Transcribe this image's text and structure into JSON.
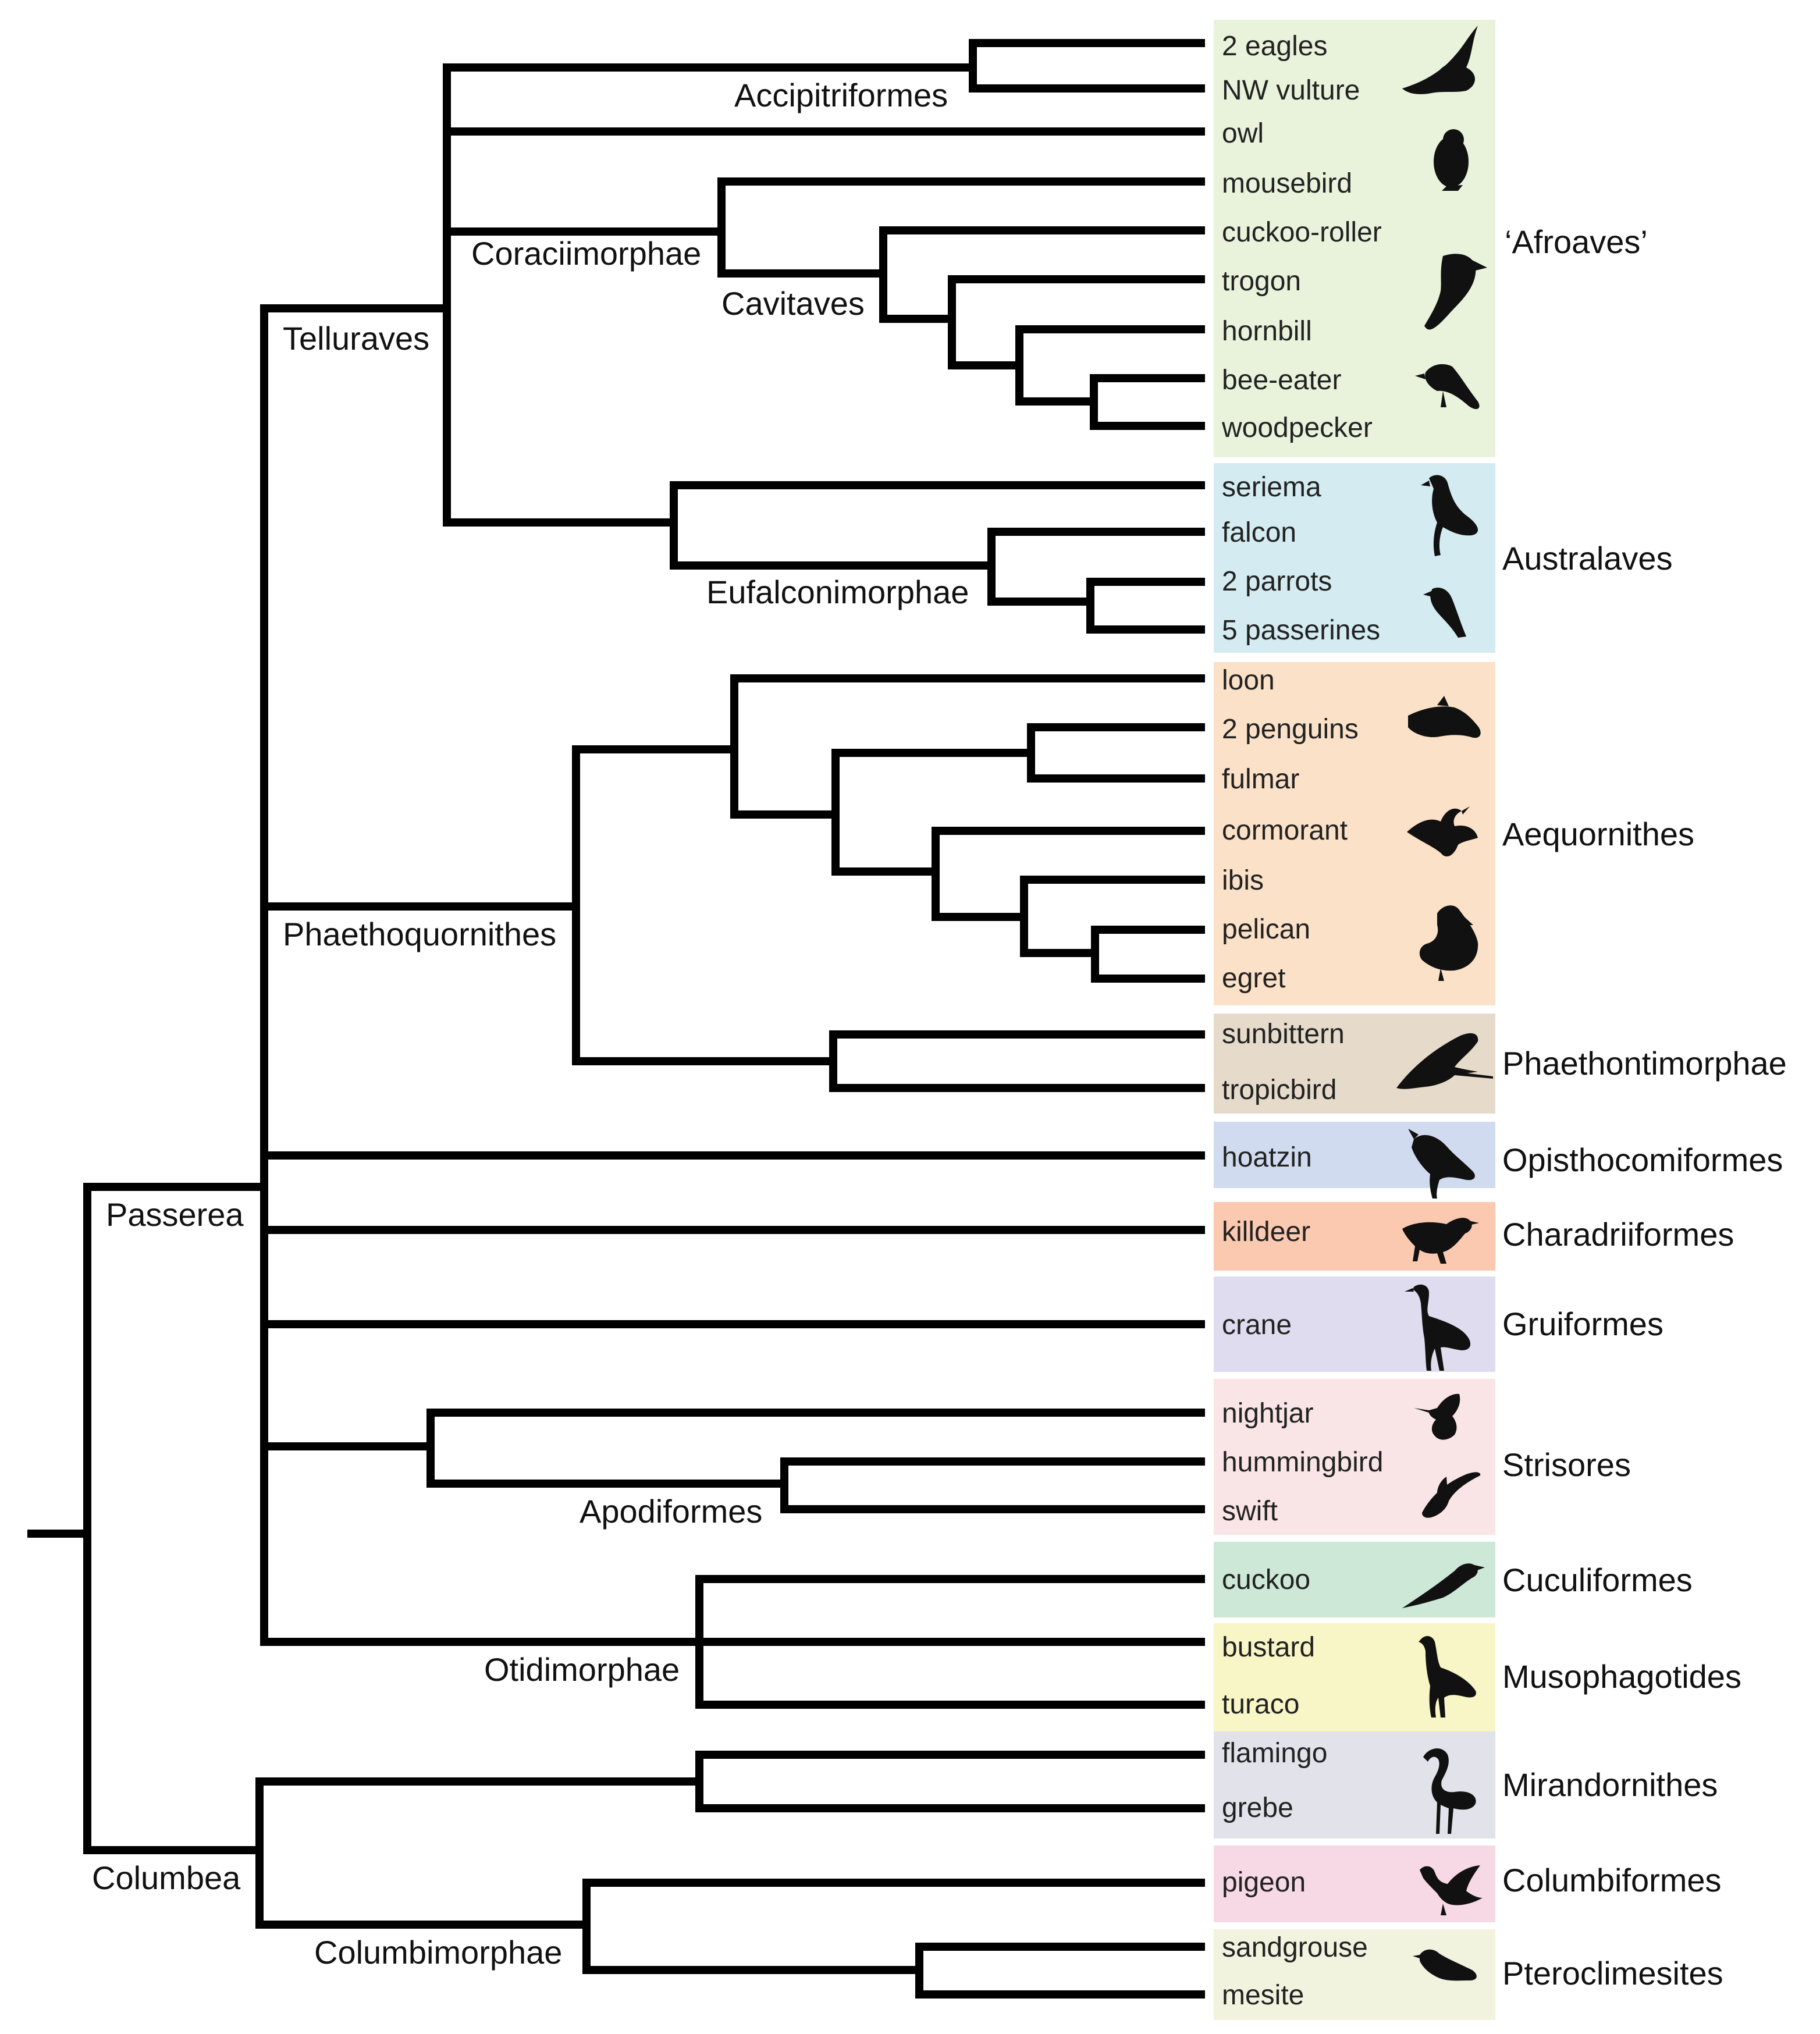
{
  "taxa": [
    "2 eagles",
    "NW vulture",
    "owl",
    "mousebird",
    "cuckoo-roller",
    "trogon",
    "hornbill",
    "bee-eater",
    "woodpecker",
    "seriema",
    "falcon",
    "2 parrots",
    "5 passerines",
    "loon",
    "2 penguins",
    "fulmar",
    "cormorant",
    "ibis",
    "pelican",
    "egret",
    "sunbittern",
    "tropicbird",
    "hoatzin",
    "killdeer",
    "crane",
    "nightjar",
    "hummingbird",
    "swift",
    "cuckoo",
    "bustard",
    "turaco",
    "flamingo",
    "grebe",
    "pigeon",
    "sandgrouse",
    "mesite"
  ],
  "clades": {
    "accipitriformes": "Accipitriformes",
    "coraciimorphae": "Coraciimorphae",
    "cavitaves": "Cavitaves",
    "telluraves": "Telluraves",
    "eufalconimorphae": "Eufalconimorphae",
    "phaethoquornithes": "Phaethoquornithes",
    "passerea": "Passerea",
    "apodiformes": "Apodiformes",
    "otidimorphae": "Otidimorphae",
    "columbea": "Columbea",
    "columbimorphae": "Columbimorphae"
  },
  "groups": [
    {
      "name": "‘Afroaves’",
      "color": "#e9f3dc",
      "silhouettes": [
        "eagle-silhouette-icon",
        "owl-silhouette-icon",
        "hornbill-silhouette-icon",
        "bee-eater-silhouette-icon"
      ]
    },
    {
      "name": "Australaves",
      "color": "#d3ebf1",
      "silhouettes": [
        "seriema-silhouette-icon",
        "passerine-silhouette-icon"
      ]
    },
    {
      "name": "Aequornithes",
      "color": "#fbe1c8",
      "silhouettes": [
        "penguin-silhouette-icon",
        "cormorant-silhouette-icon",
        "pelican-silhouette-icon"
      ]
    },
    {
      "name": "Phaethontimorphae",
      "color": "#e6dbca",
      "silhouettes": [
        "tropicbird-silhouette-icon"
      ]
    },
    {
      "name": "Opisthocomiformes",
      "color": "#d1dbef",
      "silhouettes": [
        "hoatzin-silhouette-icon"
      ]
    },
    {
      "name": "Charadriiformes",
      "color": "#fac9b0",
      "silhouettes": [
        "killdeer-silhouette-icon"
      ]
    },
    {
      "name": "Gruiformes",
      "color": "#e0dcef",
      "silhouettes": [
        "crane-silhouette-icon"
      ]
    },
    {
      "name": "Strisores",
      "color": "#fae5e6",
      "silhouettes": [
        "hummingbird-silhouette-icon",
        "swift-silhouette-icon"
      ]
    },
    {
      "name": "Cuculiformes",
      "color": "#cde8d7",
      "silhouettes": [
        "cuckoo-silhouette-icon"
      ]
    },
    {
      "name": "Musophagotides",
      "color": "#f8f6c6",
      "silhouettes": [
        "bustard-silhouette-icon"
      ]
    },
    {
      "name": "Mirandornithes",
      "color": "#e2e2eb",
      "silhouettes": [
        "flamingo-silhouette-icon"
      ]
    },
    {
      "name": "Columbiformes",
      "color": "#f6d9e4",
      "silhouettes": [
        "pigeon-silhouette-icon"
      ]
    },
    {
      "name": "Pteroclimesites",
      "color": "#f1f3de",
      "silhouettes": [
        "sandgrouse-silhouette-icon"
      ]
    }
  ],
  "branch_color": "#000000"
}
